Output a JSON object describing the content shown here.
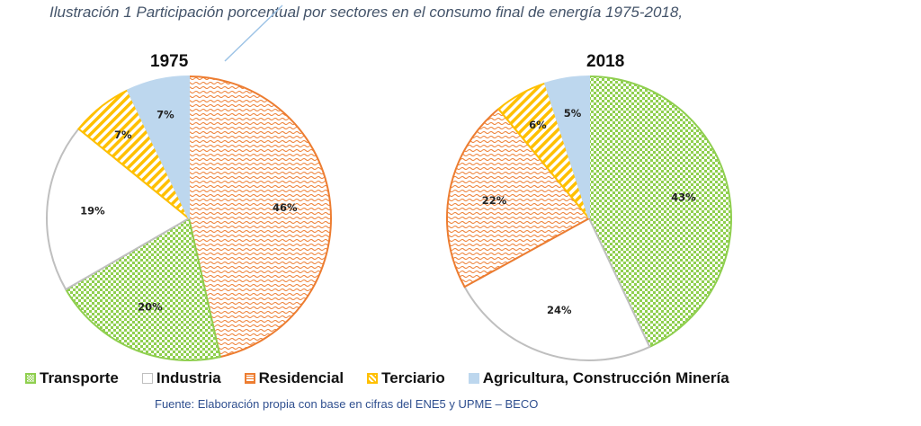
{
  "caption": "Ilustración 1 Participación porcentual por sectores en el consumo final de energía 1975-2018,",
  "source": "Fuente: Elaboración propia con base en cifras del  ENE5 y  UPME – BECO",
  "chart_data": [
    {
      "type": "pie",
      "title": "1975",
      "slices": [
        {
          "category": "Residencial",
          "value": 46,
          "label": "46%"
        },
        {
          "category": "Transporte",
          "value": 20,
          "label": "20%"
        },
        {
          "category": "Industria",
          "value": 19,
          "label": "19%"
        },
        {
          "category": "Terciario",
          "value": 7,
          "label": "7%"
        },
        {
          "category": "Agricultura, Construcción Minería",
          "value": 7,
          "label": "7%"
        }
      ]
    },
    {
      "type": "pie",
      "title": "2018",
      "slices": [
        {
          "category": "Transporte",
          "value": 43,
          "label": "43%"
        },
        {
          "category": "Industria",
          "value": 24,
          "label": "24%"
        },
        {
          "category": "Residencial",
          "value": 22,
          "label": "22%"
        },
        {
          "category": "Terciario",
          "value": 6,
          "label": "6%"
        },
        {
          "category": "Agricultura, Construcción Minería",
          "value": 5,
          "label": "5%"
        }
      ]
    }
  ],
  "legend": [
    {
      "label": "Transporte",
      "pattern": "checker",
      "color": "#8fcf4f"
    },
    {
      "label": "Industria",
      "pattern": "none",
      "color": "#bfbfbf"
    },
    {
      "label": "Residencial",
      "pattern": "wave",
      "color": "#ed7d31"
    },
    {
      "label": "Terciario",
      "pattern": "stripes",
      "color": "#ffc000"
    },
    {
      "label": "Agricultura, Construcción Minería",
      "pattern": "solid",
      "color": "#bdd7ee"
    }
  ]
}
